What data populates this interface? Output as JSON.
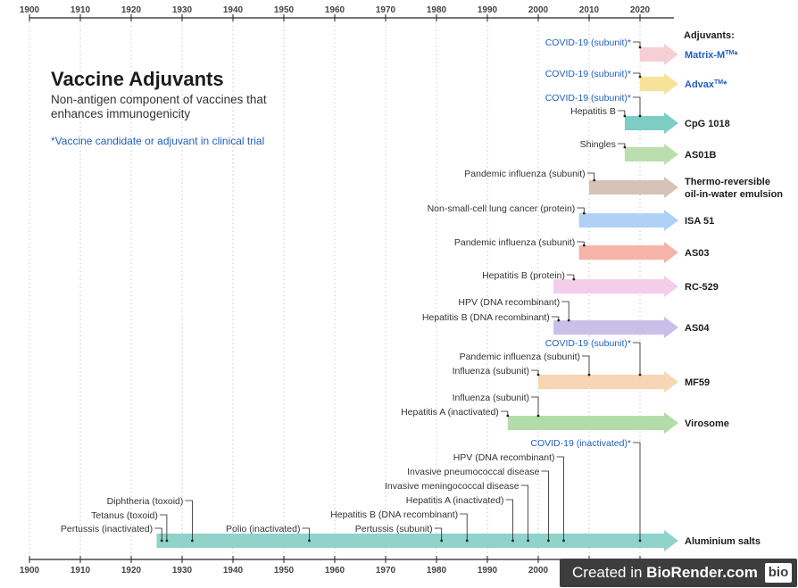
{
  "title": "Vaccine Adjuvants",
  "subtitle": "Non-antigen component of vaccines that enhances immunogenicity",
  "note": "*Vaccine candidate or adjuvant in clinical trial",
  "adjuvants_header": "Adjuvants:",
  "axis": {
    "years": [
      1900,
      1910,
      1920,
      1930,
      1940,
      1950,
      1960,
      1970,
      1980,
      1990,
      2000,
      2010,
      2020
    ]
  },
  "colors": {
    "trial_text": "#1f5fbf",
    "normal_text": "#333333",
    "grid": "#c8c8c8"
  },
  "adjuvants": [
    {
      "name": "Matrix-M",
      "sup": "TM",
      "suffix": "*",
      "trial": true,
      "color": "#f6cfd4",
      "start": 2020,
      "events": [
        {
          "label": "COVID-19 (subunit)*",
          "year": 2020,
          "trial": true
        }
      ]
    },
    {
      "name": "Advax",
      "sup": "TM",
      "suffix": "*",
      "trial": true,
      "color": "#f8e29a",
      "start": 2020,
      "events": [
        {
          "label": "COVID-19 (subunit)*",
          "year": 2020,
          "trial": true
        }
      ]
    },
    {
      "name": "CpG 1018",
      "trial": false,
      "color": "#7dcdc5",
      "start": 2017,
      "events": [
        {
          "label": "COVID-19 (subunit)*",
          "year": 2020,
          "trial": true
        },
        {
          "label": "Hepatitis B",
          "year": 2017
        }
      ]
    },
    {
      "name": "AS01B",
      "trial": false,
      "color": "#b9dfae",
      "start": 2017,
      "events": [
        {
          "label": "Shingles",
          "year": 2017
        }
      ]
    },
    {
      "name": "Thermo-reversible",
      "name2": "oil-in-water emulsion",
      "trial": false,
      "color": "#d6c2b7",
      "start": 2010,
      "events": [
        {
          "label": "Pandemic influenza (subunit)",
          "year": 2011
        }
      ]
    },
    {
      "name": "ISA 51",
      "trial": false,
      "color": "#aed1f5",
      "start": 2008,
      "events": [
        {
          "label": "Non-small-cell lung cancer (protein)",
          "year": 2009
        }
      ]
    },
    {
      "name": "AS03",
      "trial": false,
      "color": "#f6b4a8",
      "start": 2008,
      "events": [
        {
          "label": "Pandemic influenza (subunit)",
          "year": 2009
        }
      ]
    },
    {
      "name": "RC-529",
      "trial": false,
      "color": "#f4cde8",
      "start": 2003,
      "events": [
        {
          "label": "Hepatitis B (protein)",
          "year": 2007
        }
      ]
    },
    {
      "name": "AS04",
      "trial": false,
      "color": "#c9c0ea",
      "start": 2003,
      "events": [
        {
          "label": "HPV (DNA recombinant)",
          "year": 2006
        },
        {
          "label": "Hepatitis B (DNA recombinant)",
          "year": 2004
        }
      ]
    },
    {
      "name": "MF59",
      "trial": false,
      "color": "#f6d6b4",
      "start": 2000,
      "events": [
        {
          "label": "COVID-19 (subunit)*",
          "year": 2020,
          "trial": true
        },
        {
          "label": "Pandemic influenza (subunit)",
          "year": 2010
        },
        {
          "label": "Influenza (subunit)",
          "year": 2000
        }
      ]
    },
    {
      "name": "Virosome",
      "trial": false,
      "color": "#b3dca9",
      "start": 1994,
      "events": [
        {
          "label": "Influenza (subunit)",
          "year": 2000
        },
        {
          "label": "Hepatitis A (inactivated)",
          "year": 1994
        }
      ]
    },
    {
      "name": "Aluminium salts",
      "trial": false,
      "color": "#8fd3cb",
      "start": 1925,
      "events": [
        {
          "label": "COVID-19 (inactivated)*",
          "year": 2020,
          "trial": true
        },
        {
          "label": "HPV (DNA recombinant)",
          "year": 2005
        },
        {
          "label": "Invasive pneumococcal disease",
          "year": 2002
        },
        {
          "label": "Invasive meningococcal disease",
          "year": 1998
        },
        {
          "label": "Hepatitis A (inactivated)",
          "year": 1995
        },
        {
          "label": "Hepatitis B (DNA recombinant)",
          "year": 1986
        },
        {
          "label": "Pertussis (subunit)",
          "year": 1981
        },
        {
          "label": "Polio (inactivated)",
          "year": 1955
        },
        {
          "label": "Diphtheria (toxoid)",
          "year": 1932
        },
        {
          "label": "Tetanus (toxoid)",
          "year": 1927
        },
        {
          "label": "Pertussis (inactivated)",
          "year": 1926
        }
      ]
    }
  ],
  "badge": {
    "prefix": "Created in ",
    "brand": "BioRender.com",
    "logo": "bio"
  }
}
